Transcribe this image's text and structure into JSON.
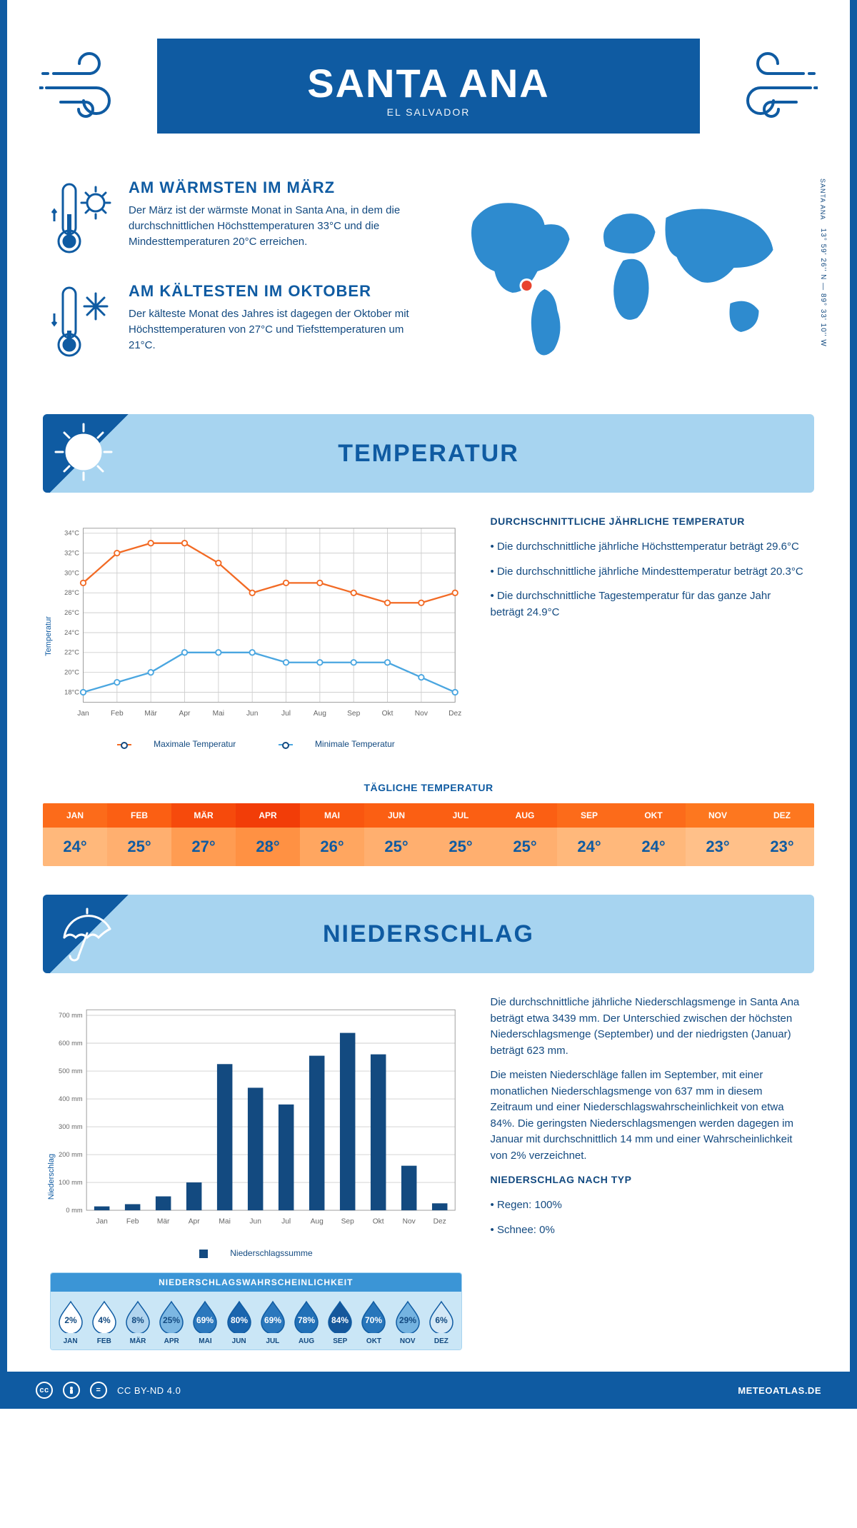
{
  "header": {
    "city": "SANTA ANA",
    "country": "EL SALVADOR"
  },
  "colors": {
    "brand": "#0f5ba2",
    "light_blue": "#a7d4f0",
    "lighter_blue": "#cae6f6",
    "orange_line": "#f26a24",
    "blue_line": "#4aa6e0",
    "grid": "#cfcfcf",
    "bar": "#134a80"
  },
  "coords": {
    "lat": "13° 59' 26'' N —",
    "lon": "89° 33' 10'' W",
    "city": "SANTA ANA"
  },
  "overview": {
    "warm": {
      "title": "AM WÄRMSTEN IM MÄRZ",
      "text": "Der März ist der wärmste Monat in Santa Ana, in dem die durchschnittlichen Höchsttemperaturen 33°C und die Mindesttemperaturen 20°C erreichen."
    },
    "cold": {
      "title": "AM KÄLTESTEN IM OKTOBER",
      "text": "Der kälteste Monat des Jahres ist dagegen der Oktober mit Höchsttemperaturen von 27°C und Tiefsttemperaturen um 21°C."
    }
  },
  "sections": {
    "temp": "TEMPERATUR",
    "precip": "NIEDERSCHLAG"
  },
  "temp_chart": {
    "months": [
      "Jan",
      "Feb",
      "Mär",
      "Apr",
      "Mai",
      "Jun",
      "Jul",
      "Aug",
      "Sep",
      "Okt",
      "Nov",
      "Dez"
    ],
    "max": [
      29,
      32,
      33,
      33,
      31,
      28,
      29,
      29,
      28,
      27,
      27,
      28
    ],
    "min": [
      18,
      19,
      20,
      22,
      22,
      22,
      21,
      21,
      21,
      21,
      19.5,
      18
    ],
    "y_ticks": [
      18,
      20,
      22,
      24,
      26,
      28,
      30,
      32,
      34
    ],
    "y_label": "Temperatur",
    "ylim": [
      17,
      34.5
    ],
    "legend_max": "Maximale Temperatur",
    "legend_min": "Minimale Temperatur"
  },
  "temp_side": {
    "title": "DURCHSCHNITTLICHE JÄHRLICHE TEMPERATUR",
    "b1": "Die durchschnittliche jährliche Höchsttemperatur beträgt 29.6°C",
    "b2": "Die durchschnittliche jährliche Mindesttemperatur beträgt 20.3°C",
    "b3": "Die durchschnittliche Tagestemperatur für das ganze Jahr beträgt 24.9°C"
  },
  "daily": {
    "title": "TÄGLICHE TEMPERATUR",
    "months": [
      "JAN",
      "FEB",
      "MÄR",
      "APR",
      "MAI",
      "JUN",
      "JUL",
      "AUG",
      "SEP",
      "OKT",
      "NOV",
      "DEZ"
    ],
    "values": [
      "24°",
      "25°",
      "27°",
      "28°",
      "26°",
      "25°",
      "25°",
      "25°",
      "24°",
      "24°",
      "23°",
      "23°"
    ],
    "hd_colors": [
      "#fc6b1a",
      "#fb5f13",
      "#f64a0c",
      "#f23d08",
      "#f9560f",
      "#fb5f13",
      "#fb5f13",
      "#fb5f13",
      "#fc6b1a",
      "#fc6b1a",
      "#fd771f",
      "#fd771f"
    ],
    "row_colors": [
      "#ffb87b",
      "#ffaf6f",
      "#ff9c52",
      "#ff9143",
      "#ffa660",
      "#ffaf6f",
      "#ffaf6f",
      "#ffaf6f",
      "#ffb87b",
      "#ffb87b",
      "#ffc089",
      "#ffc089"
    ]
  },
  "precip_chart": {
    "months": [
      "Jan",
      "Feb",
      "Mär",
      "Apr",
      "Mai",
      "Jun",
      "Jul",
      "Aug",
      "Sep",
      "Okt",
      "Nov",
      "Dez"
    ],
    "values": [
      14,
      22,
      50,
      100,
      525,
      440,
      380,
      555,
      637,
      560,
      160,
      25
    ],
    "y_ticks": [
      0,
      100,
      200,
      300,
      400,
      500,
      600,
      700
    ],
    "y_label": "Niederschlag",
    "ylim": [
      0,
      720
    ],
    "legend": "Niederschlagssumme"
  },
  "precip_text": {
    "p1": "Die durchschnittliche jährliche Niederschlagsmenge in Santa Ana beträgt etwa 3439 mm. Der Unterschied zwischen der höchsten Niederschlagsmenge (September) und der niedrigsten (Januar) beträgt 623 mm.",
    "p2": "Die meisten Niederschläge fallen im September, mit einer monatlichen Niederschlagsmenge von 637 mm in diesem Zeitraum und einer Niederschlagswahrscheinlichkeit von etwa 84%. Die geringsten Niederschlagsmengen werden dagegen im Januar mit durchschnittlich 14 mm und einer Wahrscheinlichkeit von 2% verzeichnet.",
    "type_title": "NIEDERSCHLAG NACH TYP",
    "rain": "Regen: 100%",
    "snow": "Schnee: 0%"
  },
  "prob": {
    "title": "NIEDERSCHLAGSWAHRSCHEINLICHKEIT",
    "months": [
      "JAN",
      "FEB",
      "MÄR",
      "APR",
      "MAI",
      "JUN",
      "JUL",
      "AUG",
      "SEP",
      "OKT",
      "NOV",
      "DEZ"
    ],
    "values": [
      "2%",
      "4%",
      "8%",
      "25%",
      "69%",
      "80%",
      "69%",
      "78%",
      "84%",
      "70%",
      "29%",
      "6%"
    ],
    "shades": [
      "#ffffff",
      "#ffffff",
      "#b1d4ee",
      "#7cb7e2",
      "#2b78bd",
      "#1a65ae",
      "#2b78bd",
      "#2170b7",
      "#15579b",
      "#2876bb",
      "#74b3e0",
      "#d4e8f6"
    ],
    "pct_color_on_dark": "#ffffff",
    "pct_color_on_light": "#134a80"
  },
  "footer": {
    "license": "CC BY-ND 4.0",
    "site": "METEOATLAS.DE"
  }
}
